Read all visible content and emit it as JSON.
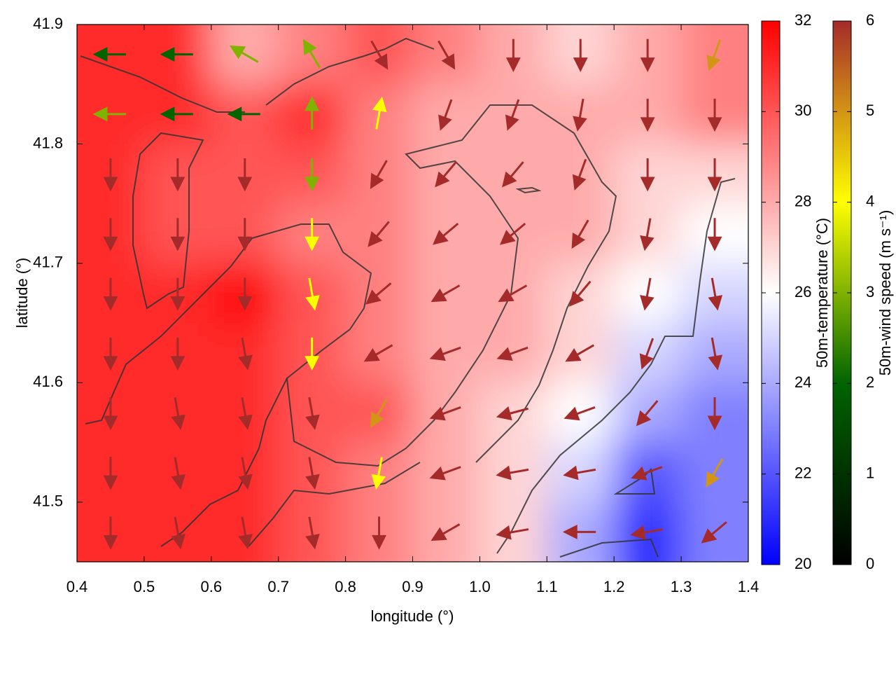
{
  "chart_data": {
    "type": "heatmap-vectors",
    "x_label": "longitude (°)",
    "y_label": "latitude (°)",
    "xlim": [
      0.4,
      1.4
    ],
    "ylim": [
      41.45,
      41.9
    ],
    "xticks": [
      0.4,
      0.5,
      0.6,
      0.7,
      0.8,
      0.9,
      {
        "value": 1,
        "label": "1.0"
      },
      1.1,
      1.2,
      1.3,
      1.4
    ],
    "yticks": [
      41.5,
      41.6,
      41.7,
      41.8,
      41.9
    ],
    "x": [
      0.45,
      0.55,
      0.65,
      0.75,
      0.85,
      0.95,
      1.05,
      1.15,
      1.25,
      1.35
    ],
    "y": [
      41.875,
      41.825,
      41.775,
      41.725,
      41.675,
      41.625,
      41.575,
      41.525,
      41.475
    ],
    "temperature": {
      "label": "50m-temperature (°C)",
      "lim": [
        20,
        32
      ],
      "ticks": [
        20,
        22,
        24,
        26,
        28,
        30,
        32
      ],
      "colors": [
        "#0000ff",
        "#ffffff",
        "#ff0000"
      ],
      "z": [
        [
          31,
          31,
          28,
          29,
          30,
          29,
          28,
          27,
          28,
          29
        ],
        [
          31,
          31,
          30,
          31,
          29,
          28,
          28,
          28,
          28,
          29
        ],
        [
          31,
          30,
          30,
          30,
          29,
          28,
          28,
          28,
          27,
          27
        ],
        [
          31,
          30,
          30,
          29,
          29,
          28,
          28,
          28,
          27,
          26
        ],
        [
          31,
          31,
          32,
          30,
          29,
          28,
          28,
          27,
          26,
          25
        ],
        [
          31,
          31,
          31,
          30,
          29,
          28,
          28,
          27,
          25,
          24
        ],
        [
          31,
          31,
          31,
          30,
          30,
          28,
          27,
          26,
          24,
          23
        ],
        [
          31,
          31,
          31,
          30,
          29,
          28,
          27,
          25,
          22,
          23
        ],
        [
          31,
          31,
          31,
          30,
          29,
          28,
          27,
          24,
          21,
          23
        ]
      ]
    },
    "wind": {
      "label": "50m-wind speed (m s⁻¹)",
      "lim": [
        0,
        6
      ],
      "ticks": [
        0,
        1,
        2,
        3,
        4,
        5,
        6
      ],
      "colors": [
        "#000000",
        "#006400",
        "#ffff00",
        "#a52a2a"
      ],
      "speed": [
        [
          2,
          2,
          3,
          3,
          6,
          6,
          6,
          6,
          6,
          5
        ],
        [
          3,
          2,
          2,
          3,
          4,
          6,
          6,
          6,
          6,
          6
        ],
        [
          6,
          6,
          6,
          3,
          6,
          6,
          6,
          6,
          6,
          6
        ],
        [
          6,
          6,
          6,
          4,
          6,
          6,
          6,
          6,
          6,
          6
        ],
        [
          6,
          6,
          6,
          4,
          6,
          6,
          6,
          6,
          6,
          6
        ],
        [
          6,
          6,
          6,
          4,
          6,
          6,
          6,
          6,
          6,
          6
        ],
        [
          6,
          6,
          6,
          6,
          5,
          6,
          6,
          6,
          6,
          6
        ],
        [
          6,
          6,
          6,
          6,
          4,
          6,
          6,
          6,
          6,
          5
        ],
        [
          6,
          6,
          6,
          6,
          6,
          6,
          6,
          6,
          6,
          6
        ]
      ],
      "direction": [
        [
          180,
          180,
          150,
          120,
          300,
          300,
          270,
          270,
          270,
          250
        ],
        [
          180,
          180,
          180,
          90,
          80,
          250,
          250,
          260,
          270,
          270
        ],
        [
          270,
          270,
          270,
          270,
          240,
          230,
          230,
          250,
          270,
          270
        ],
        [
          270,
          270,
          270,
          270,
          230,
          220,
          220,
          240,
          260,
          270
        ],
        [
          270,
          270,
          270,
          280,
          220,
          210,
          210,
          230,
          260,
          280
        ],
        [
          270,
          270,
          280,
          270,
          210,
          200,
          200,
          210,
          250,
          280
        ],
        [
          270,
          280,
          280,
          280,
          240,
          200,
          195,
          200,
          230,
          270
        ],
        [
          270,
          280,
          280,
          280,
          260,
          200,
          190,
          190,
          200,
          240
        ],
        [
          270,
          280,
          280,
          280,
          270,
          210,
          190,
          180,
          190,
          220
        ]
      ]
    }
  }
}
